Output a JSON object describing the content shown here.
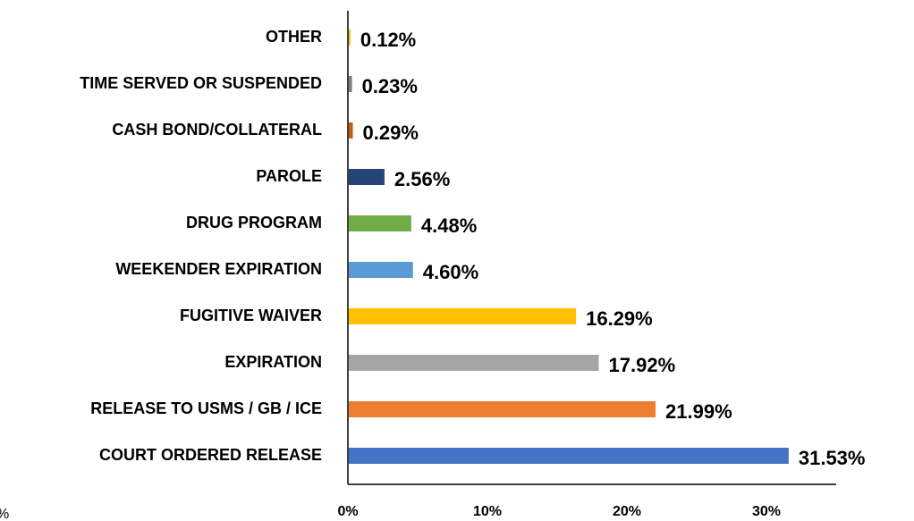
{
  "chart_data": {
    "type": "bar",
    "orientation": "horizontal",
    "categories": [
      "OTHER",
      "TIME SERVED OR SUSPENDED",
      "CASH BOND/COLLATERAL",
      "PAROLE",
      "DRUG PROGRAM",
      "WEEKENDER EXPIRATION",
      "FUGITIVE WAIVER",
      "EXPIRATION",
      "RELEASE TO USMS / GB / ICE",
      "COURT ORDERED RELEASE"
    ],
    "values": [
      0.12,
      0.23,
      0.29,
      2.56,
      4.48,
      4.6,
      16.29,
      17.92,
      21.99,
      31.53
    ],
    "value_labels": [
      "0.12%",
      "0.23%",
      "0.29%",
      "2.56%",
      "4.48%",
      "4.60%",
      "16.29%",
      "17.92%",
      "21.99%",
      "31.53%"
    ],
    "colors": [
      "#ffc000",
      "#7f7f7f",
      "#c55a11",
      "#264478",
      "#70ad47",
      "#5b9bd5",
      "#ffc000",
      "#a5a5a5",
      "#ed7d31",
      "#4472c4"
    ],
    "xlim": [
      0,
      35
    ],
    "xticks": [
      {
        "value": 0,
        "label": "0%"
      },
      {
        "value": 10,
        "label": "10%"
      },
      {
        "value": 20,
        "label": "20%"
      },
      {
        "value": 30,
        "label": "30%"
      }
    ],
    "annotations": [
      "%"
    ],
    "grid": false
  }
}
